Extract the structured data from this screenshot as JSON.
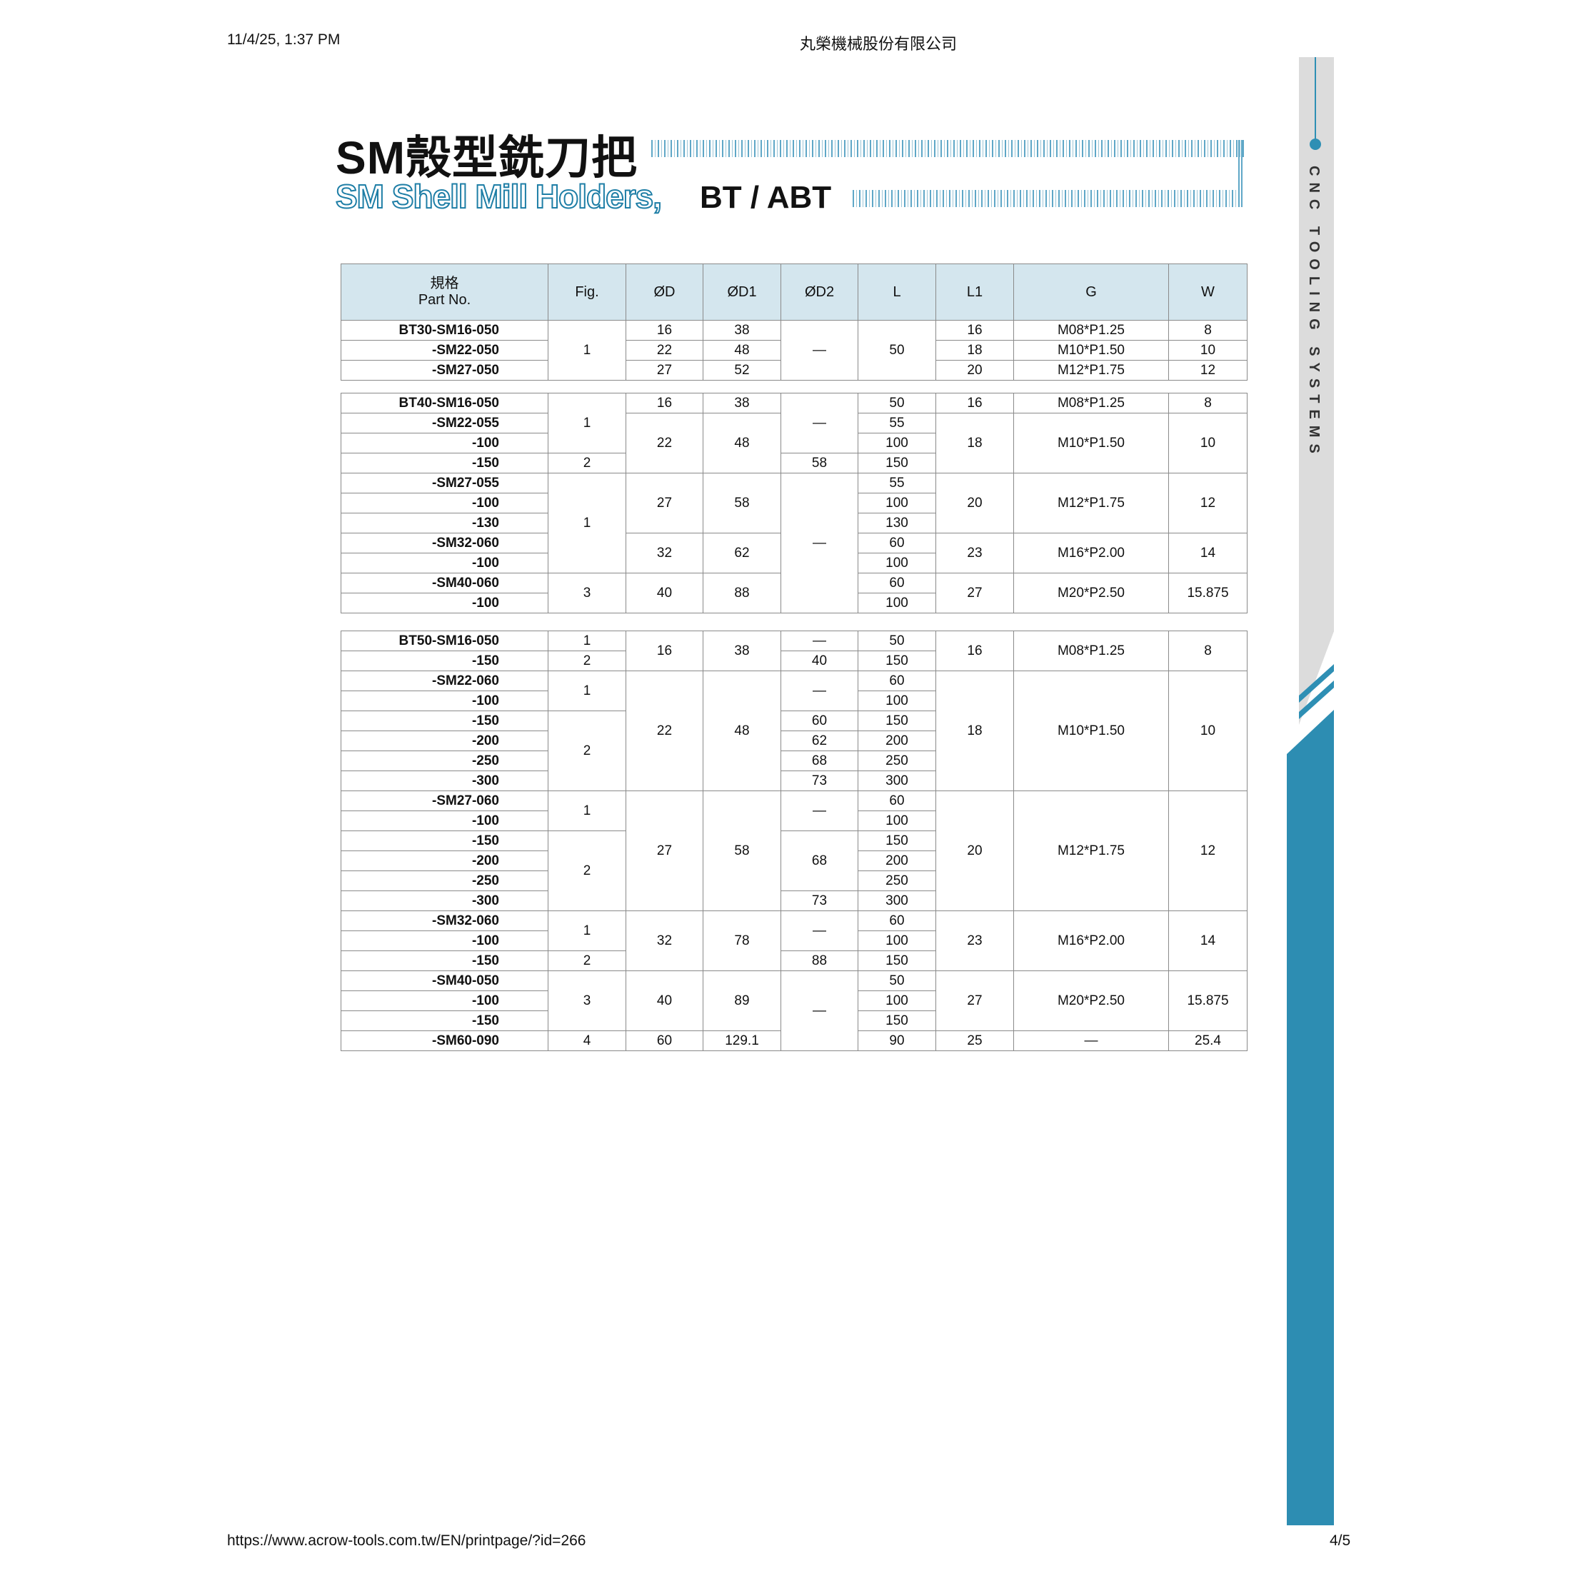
{
  "browser_header": {
    "datetime": "11/4/25, 1:37 PM",
    "page_title": "丸榮機械股份有限公司"
  },
  "browser_footer": {
    "url": "https://www.acrow-tools.com.tw/EN/printpage/?id=266",
    "page_number": "4/5"
  },
  "title": {
    "cn": "SM殼型銑刀把",
    "en": "SM Shell Mill Holders,",
    "suffix": "BT / ABT"
  },
  "sidebar": {
    "text": "CNC TOOLING SYSTEMS",
    "accent_color": "#2d8db2"
  },
  "table": {
    "header_bg": "#d4e6ee",
    "columns": [
      {
        "cn": "規格",
        "en": "Part No."
      },
      {
        "en": "Fig."
      },
      {
        "en": "ØD"
      },
      {
        "en": "ØD1"
      },
      {
        "en": "ØD2"
      },
      {
        "en": "L"
      },
      {
        "en": "L1"
      },
      {
        "en": "G"
      },
      {
        "en": "W"
      }
    ],
    "groups": [
      [
        [
          {
            "v": "BT30-SM16-050"
          },
          {
            "v": "1",
            "rs": 3
          },
          {
            "v": "16"
          },
          {
            "v": "38"
          },
          {
            "v": "—",
            "rs": 3
          },
          {
            "v": "50",
            "rs": 3
          },
          {
            "v": "16"
          },
          {
            "v": "M08*P1.25"
          },
          {
            "v": "8"
          }
        ],
        [
          {
            "v": "-SM22-050"
          },
          {
            "v": "22"
          },
          {
            "v": "48"
          },
          {
            "v": "18"
          },
          {
            "v": "M10*P1.50"
          },
          {
            "v": "10"
          }
        ],
        [
          {
            "v": "-SM27-050"
          },
          {
            "v": "27"
          },
          {
            "v": "52"
          },
          {
            "v": "20"
          },
          {
            "v": "M12*P1.75"
          },
          {
            "v": "12"
          }
        ]
      ],
      [
        [
          {
            "v": "BT40-SM16-050"
          },
          {
            "v": "1",
            "rs": 3
          },
          {
            "v": "16"
          },
          {
            "v": "38"
          },
          {
            "v": "—",
            "rs": 3
          },
          {
            "v": "50"
          },
          {
            "v": "16"
          },
          {
            "v": "M08*P1.25"
          },
          {
            "v": "8"
          }
        ],
        [
          {
            "v": "-SM22-055"
          },
          {
            "v": "22",
            "rs": 3
          },
          {
            "v": "48",
            "rs": 3
          },
          {
            "v": "55"
          },
          {
            "v": "18",
            "rs": 3
          },
          {
            "v": "M10*P1.50",
            "rs": 3
          },
          {
            "v": "10",
            "rs": 3
          }
        ],
        [
          {
            "v": "-100"
          },
          {
            "v": "100"
          }
        ],
        [
          {
            "v": "-150"
          },
          {
            "v": "2"
          },
          {
            "v": "58"
          },
          {
            "v": "150"
          }
        ],
        [
          {
            "v": "-SM27-055"
          },
          {
            "v": "1",
            "rs": 5
          },
          {
            "v": "27",
            "rs": 3
          },
          {
            "v": "58",
            "rs": 3
          },
          {
            "v": "—",
            "rs": 7
          },
          {
            "v": "55"
          },
          {
            "v": "20",
            "rs": 3
          },
          {
            "v": "M12*P1.75",
            "rs": 3
          },
          {
            "v": "12",
            "rs": 3
          }
        ],
        [
          {
            "v": "-100"
          },
          {
            "v": "100"
          }
        ],
        [
          {
            "v": "-130"
          },
          {
            "v": "130"
          }
        ],
        [
          {
            "v": "-SM32-060"
          },
          {
            "v": "32",
            "rs": 2
          },
          {
            "v": "62",
            "rs": 2
          },
          {
            "v": "60"
          },
          {
            "v": "23",
            "rs": 2
          },
          {
            "v": "M16*P2.00",
            "rs": 2
          },
          {
            "v": "14",
            "rs": 2
          }
        ],
        [
          {
            "v": "-100"
          },
          {
            "v": "100"
          }
        ],
        [
          {
            "v": "-SM40-060"
          },
          {
            "v": "3",
            "rs": 2
          },
          {
            "v": "40",
            "rs": 2
          },
          {
            "v": "88",
            "rs": 2
          },
          {
            "v": "60"
          },
          {
            "v": "27",
            "rs": 2
          },
          {
            "v": "M20*P2.50",
            "rs": 2
          },
          {
            "v": "15.875",
            "rs": 2
          }
        ],
        [
          {
            "v": "-100"
          },
          {
            "v": "100"
          }
        ]
      ],
      [
        [
          {
            "v": "BT50-SM16-050"
          },
          {
            "v": "1"
          },
          {
            "v": "16",
            "rs": 2
          },
          {
            "v": "38",
            "rs": 2
          },
          {
            "v": "—"
          },
          {
            "v": "50"
          },
          {
            "v": "16",
            "rs": 2
          },
          {
            "v": "M08*P1.25",
            "rs": 2
          },
          {
            "v": "8",
            "rs": 2
          }
        ],
        [
          {
            "v": "-150"
          },
          {
            "v": "2"
          },
          {
            "v": "40"
          },
          {
            "v": "150"
          }
        ],
        [
          {
            "v": "-SM22-060"
          },
          {
            "v": "1",
            "rs": 2
          },
          {
            "v": "22",
            "rs": 6
          },
          {
            "v": "48",
            "rs": 6
          },
          {
            "v": "—",
            "rs": 2
          },
          {
            "v": "60"
          },
          {
            "v": "18",
            "rs": 6
          },
          {
            "v": "M10*P1.50",
            "rs": 6
          },
          {
            "v": "10",
            "rs": 6
          }
        ],
        [
          {
            "v": "-100"
          },
          {
            "v": "100"
          }
        ],
        [
          {
            "v": "-150"
          },
          {
            "v": "2",
            "rs": 4
          },
          {
            "v": "60"
          },
          {
            "v": "150"
          }
        ],
        [
          {
            "v": "-200"
          },
          {
            "v": "62"
          },
          {
            "v": "200"
          }
        ],
        [
          {
            "v": "-250"
          },
          {
            "v": "68"
          },
          {
            "v": "250"
          }
        ],
        [
          {
            "v": "-300"
          },
          {
            "v": "73"
          },
          {
            "v": "300"
          }
        ],
        [
          {
            "v": "-SM27-060"
          },
          {
            "v": "1",
            "rs": 2
          },
          {
            "v": "27",
            "rs": 6
          },
          {
            "v": "58",
            "rs": 6
          },
          {
            "v": "—",
            "rs": 2
          },
          {
            "v": "60"
          },
          {
            "v": "20",
            "rs": 6
          },
          {
            "v": "M12*P1.75",
            "rs": 6
          },
          {
            "v": "12",
            "rs": 6
          }
        ],
        [
          {
            "v": "-100"
          },
          {
            "v": "100"
          }
        ],
        [
          {
            "v": "-150"
          },
          {
            "v": "2",
            "rs": 4
          },
          {
            "v": "68",
            "rs": 3
          },
          {
            "v": "150"
          }
        ],
        [
          {
            "v": "-200"
          },
          {
            "v": "200"
          }
        ],
        [
          {
            "v": "-250"
          },
          {
            "v": "250"
          }
        ],
        [
          {
            "v": "-300"
          },
          {
            "v": "73"
          },
          {
            "v": "300"
          }
        ],
        [
          {
            "v": "-SM32-060"
          },
          {
            "v": "1",
            "rs": 2
          },
          {
            "v": "32",
            "rs": 3
          },
          {
            "v": "78",
            "rs": 3
          },
          {
            "v": "—",
            "rs": 2
          },
          {
            "v": "60"
          },
          {
            "v": "23",
            "rs": 3
          },
          {
            "v": "M16*P2.00",
            "rs": 3
          },
          {
            "v": "14",
            "rs": 3
          }
        ],
        [
          {
            "v": "-100"
          },
          {
            "v": "100"
          }
        ],
        [
          {
            "v": "-150"
          },
          {
            "v": "2"
          },
          {
            "v": "88"
          },
          {
            "v": "150"
          }
        ],
        [
          {
            "v": "-SM40-050"
          },
          {
            "v": "3",
            "rs": 3
          },
          {
            "v": "40",
            "rs": 3
          },
          {
            "v": "89",
            "rs": 3
          },
          {
            "v": "—",
            "rs": 4
          },
          {
            "v": "50"
          },
          {
            "v": "27",
            "rs": 3
          },
          {
            "v": "M20*P2.50",
            "rs": 3
          },
          {
            "v": "15.875",
            "rs": 3
          }
        ],
        [
          {
            "v": "-100"
          },
          {
            "v": "100"
          }
        ],
        [
          {
            "v": "-150"
          },
          {
            "v": "150"
          }
        ],
        [
          {
            "v": "-SM60-090"
          },
          {
            "v": "4"
          },
          {
            "v": "60"
          },
          {
            "v": "129.1"
          },
          {
            "v": "90"
          },
          {
            "v": "25"
          },
          {
            "v": "—"
          },
          {
            "v": "25.4"
          }
        ]
      ]
    ]
  }
}
